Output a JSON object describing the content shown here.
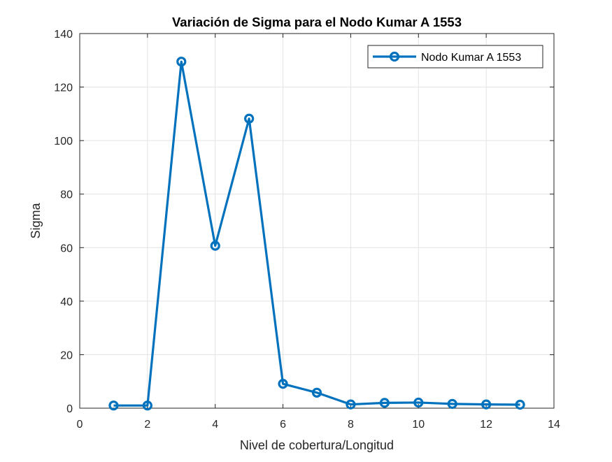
{
  "chart_data": {
    "type": "line",
    "title": "Variación de Sigma para el Nodo Kumar A 1553",
    "xlabel": "Nivel de cobertura/Longitud",
    "ylabel": "Sigma",
    "xlim": [
      0,
      14
    ],
    "ylim": [
      0,
      140
    ],
    "xticks": [
      0,
      2,
      4,
      6,
      8,
      10,
      12,
      14
    ],
    "yticks": [
      0,
      20,
      40,
      60,
      80,
      100,
      120,
      140
    ],
    "grid": true,
    "legend_position": "top-right",
    "series": [
      {
        "name": "Nodo Kumar A 1553",
        "color": "#0072BD",
        "marker": "circle",
        "x": [
          1,
          2,
          3,
          4,
          5,
          6,
          7,
          8,
          9,
          10,
          11,
          12,
          13
        ],
        "y": [
          1.0,
          1.0,
          129.5,
          60.7,
          108.2,
          9.1,
          5.8,
          1.4,
          2.0,
          2.1,
          1.6,
          1.4,
          1.3
        ]
      }
    ]
  }
}
